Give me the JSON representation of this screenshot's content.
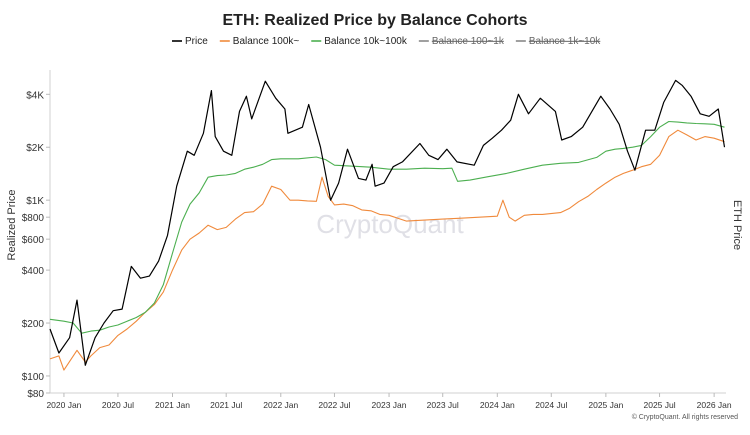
{
  "chart_data": {
    "type": "line",
    "title": "ETH: Realized Price by Balance Cohorts",
    "ylabel": "Realized Price",
    "ylabel_right": "ETH Price",
    "y_scale": "log",
    "ylim": [
      80,
      5500
    ],
    "y_ticks": [
      {
        "value": 80,
        "label": "$80"
      },
      {
        "value": 100,
        "label": "$100"
      },
      {
        "value": 200,
        "label": "$200"
      },
      {
        "value": 400,
        "label": "$400"
      },
      {
        "value": 600,
        "label": "$600"
      },
      {
        "value": 800,
        "label": "$800"
      },
      {
        "value": 1000,
        "label": "$1K"
      },
      {
        "value": 2000,
        "label": "$2K"
      },
      {
        "value": 4000,
        "label": "$4K"
      }
    ],
    "xlim": [
      "2019-11-15",
      "2026-02-10"
    ],
    "x_ticks": [
      {
        "value": "2020-01-01",
        "label": "2020 Jan"
      },
      {
        "value": "2020-07-01",
        "label": "2020 Jul"
      },
      {
        "value": "2021-01-01",
        "label": "2021 Jan"
      },
      {
        "value": "2021-07-01",
        "label": "2021 Jul"
      },
      {
        "value": "2022-01-01",
        "label": "2022 Jan"
      },
      {
        "value": "2022-07-01",
        "label": "2022 Jul"
      },
      {
        "value": "2023-01-01",
        "label": "2023 Jan"
      },
      {
        "value": "2023-07-01",
        "label": "2023 Jul"
      },
      {
        "value": "2024-01-01",
        "label": "2024 Jan"
      },
      {
        "value": "2024-07-01",
        "label": "2024 Jul"
      },
      {
        "value": "2025-01-01",
        "label": "2025 Jan"
      },
      {
        "value": "2025-07-01",
        "label": "2025 Jul"
      },
      {
        "value": "2026-01-01",
        "label": "2026 Jan"
      }
    ],
    "grid": false,
    "legend_position": "top-center",
    "watermark": "CryptoQuant",
    "copyright": "© CryptoQuant. All rights reserved",
    "series": [
      {
        "name": "Price",
        "color": "#000000",
        "visible": true,
        "points": [
          [
            "2019-11-15",
            185
          ],
          [
            "2019-12-15",
            135
          ],
          [
            "2020-01-20",
            165
          ],
          [
            "2020-02-14",
            270
          ],
          [
            "2020-03-13",
            115
          ],
          [
            "2020-04-15",
            165
          ],
          [
            "2020-05-15",
            200
          ],
          [
            "2020-06-15",
            235
          ],
          [
            "2020-07-15",
            240
          ],
          [
            "2020-08-15",
            420
          ],
          [
            "2020-09-15",
            360
          ],
          [
            "2020-10-15",
            370
          ],
          [
            "2020-11-15",
            450
          ],
          [
            "2020-12-15",
            630
          ],
          [
            "2021-01-15",
            1200
          ],
          [
            "2021-02-20",
            1900
          ],
          [
            "2021-03-15",
            1800
          ],
          [
            "2021-04-15",
            2400
          ],
          [
            "2021-05-12",
            4200
          ],
          [
            "2021-05-25",
            2300
          ],
          [
            "2021-06-22",
            1900
          ],
          [
            "2021-07-20",
            1800
          ],
          [
            "2021-08-15",
            3200
          ],
          [
            "2021-09-07",
            3900
          ],
          [
            "2021-09-25",
            2900
          ],
          [
            "2021-11-10",
            4750
          ],
          [
            "2021-12-15",
            3800
          ],
          [
            "2022-01-15",
            3300
          ],
          [
            "2022-01-25",
            2400
          ],
          [
            "2022-03-15",
            2600
          ],
          [
            "2022-04-05",
            3500
          ],
          [
            "2022-05-15",
            2000
          ],
          [
            "2022-06-18",
            1000
          ],
          [
            "2022-07-15",
            1250
          ],
          [
            "2022-08-14",
            1950
          ],
          [
            "2022-09-20",
            1330
          ],
          [
            "2022-10-15",
            1300
          ],
          [
            "2022-11-05",
            1600
          ],
          [
            "2022-11-15",
            1200
          ],
          [
            "2022-12-15",
            1250
          ],
          [
            "2023-01-15",
            1550
          ],
          [
            "2023-02-15",
            1650
          ],
          [
            "2023-04-15",
            2100
          ],
          [
            "2023-05-15",
            1800
          ],
          [
            "2023-06-15",
            1700
          ],
          [
            "2023-07-15",
            1950
          ],
          [
            "2023-08-18",
            1650
          ],
          [
            "2023-10-15",
            1580
          ],
          [
            "2023-11-15",
            2050
          ],
          [
            "2023-12-15",
            2250
          ],
          [
            "2024-01-15",
            2500
          ],
          [
            "2024-02-15",
            2850
          ],
          [
            "2024-03-12",
            4000
          ],
          [
            "2024-04-15",
            3100
          ],
          [
            "2024-05-25",
            3800
          ],
          [
            "2024-07-15",
            3200
          ],
          [
            "2024-08-05",
            2200
          ],
          [
            "2024-09-06",
            2300
          ],
          [
            "2024-10-15",
            2600
          ],
          [
            "2024-12-15",
            3900
          ],
          [
            "2025-01-15",
            3300
          ],
          [
            "2025-02-15",
            2700
          ],
          [
            "2025-03-15",
            1900
          ],
          [
            "2025-04-09",
            1480
          ],
          [
            "2025-05-15",
            2500
          ],
          [
            "2025-06-15",
            2500
          ],
          [
            "2025-07-15",
            3600
          ],
          [
            "2025-08-24",
            4800
          ],
          [
            "2025-09-15",
            4500
          ],
          [
            "2025-10-15",
            3900
          ],
          [
            "2025-11-15",
            3100
          ],
          [
            "2025-12-15",
            3000
          ],
          [
            "2026-01-15",
            3300
          ],
          [
            "2026-02-05",
            2000
          ]
        ]
      },
      {
        "name": "Balance 100k~",
        "color": "#f08a3c",
        "visible": true,
        "points": [
          [
            "2019-11-15",
            125
          ],
          [
            "2019-12-15",
            130
          ],
          [
            "2020-01-01",
            108
          ],
          [
            "2020-02-14",
            140
          ],
          [
            "2020-03-13",
            120
          ],
          [
            "2020-04-01",
            130
          ],
          [
            "2020-05-01",
            145
          ],
          [
            "2020-06-01",
            150
          ],
          [
            "2020-07-01",
            170
          ],
          [
            "2020-08-01",
            185
          ],
          [
            "2020-09-01",
            205
          ],
          [
            "2020-10-01",
            230
          ],
          [
            "2020-11-01",
            255
          ],
          [
            "2020-12-01",
            300
          ],
          [
            "2021-01-01",
            400
          ],
          [
            "2021-02-01",
            520
          ],
          [
            "2021-03-01",
            600
          ],
          [
            "2021-04-01",
            650
          ],
          [
            "2021-05-01",
            720
          ],
          [
            "2021-06-01",
            680
          ],
          [
            "2021-07-01",
            700
          ],
          [
            "2021-08-01",
            780
          ],
          [
            "2021-09-01",
            850
          ],
          [
            "2021-10-01",
            860
          ],
          [
            "2021-11-01",
            950
          ],
          [
            "2021-12-01",
            1200
          ],
          [
            "2022-01-01",
            1150
          ],
          [
            "2022-02-01",
            1000
          ],
          [
            "2022-03-01",
            1000
          ],
          [
            "2022-04-01",
            990
          ],
          [
            "2022-05-01",
            985
          ],
          [
            "2022-05-20",
            1350
          ],
          [
            "2022-06-10",
            1050
          ],
          [
            "2022-07-01",
            940
          ],
          [
            "2022-08-01",
            950
          ],
          [
            "2022-09-01",
            930
          ],
          [
            "2022-10-01",
            880
          ],
          [
            "2022-11-01",
            870
          ],
          [
            "2022-12-01",
            830
          ],
          [
            "2023-01-01",
            820
          ],
          [
            "2023-03-01",
            760
          ],
          [
            "2023-05-01",
            770
          ],
          [
            "2023-07-01",
            780
          ],
          [
            "2023-09-01",
            790
          ],
          [
            "2023-11-01",
            800
          ],
          [
            "2024-01-01",
            810
          ],
          [
            "2024-01-20",
            1000
          ],
          [
            "2024-02-10",
            800
          ],
          [
            "2024-03-01",
            760
          ],
          [
            "2024-04-01",
            820
          ],
          [
            "2024-05-01",
            830
          ],
          [
            "2024-06-01",
            830
          ],
          [
            "2024-08-01",
            850
          ],
          [
            "2024-09-01",
            900
          ],
          [
            "2024-10-01",
            980
          ],
          [
            "2024-11-01",
            1050
          ],
          [
            "2024-12-01",
            1150
          ],
          [
            "2025-01-01",
            1250
          ],
          [
            "2025-02-01",
            1350
          ],
          [
            "2025-03-01",
            1420
          ],
          [
            "2025-04-01",
            1480
          ],
          [
            "2025-05-01",
            1550
          ],
          [
            "2025-06-01",
            1600
          ],
          [
            "2025-07-01",
            1800
          ],
          [
            "2025-08-01",
            2300
          ],
          [
            "2025-09-01",
            2500
          ],
          [
            "2025-10-01",
            2350
          ],
          [
            "2025-11-01",
            2200
          ],
          [
            "2025-12-01",
            2300
          ],
          [
            "2026-01-01",
            2250
          ],
          [
            "2026-02-05",
            2150
          ]
        ]
      },
      {
        "name": "Balance 10k~100k",
        "color": "#4caf50",
        "visible": true,
        "points": [
          [
            "2019-11-15",
            210
          ],
          [
            "2020-01-01",
            205
          ],
          [
            "2020-02-01",
            200
          ],
          [
            "2020-03-01",
            175
          ],
          [
            "2020-04-01",
            180
          ],
          [
            "2020-05-01",
            182
          ],
          [
            "2020-06-01",
            190
          ],
          [
            "2020-07-01",
            195
          ],
          [
            "2020-08-01",
            205
          ],
          [
            "2020-09-01",
            215
          ],
          [
            "2020-10-01",
            230
          ],
          [
            "2020-11-01",
            260
          ],
          [
            "2020-12-01",
            330
          ],
          [
            "2021-01-01",
            500
          ],
          [
            "2021-02-01",
            750
          ],
          [
            "2021-03-01",
            950
          ],
          [
            "2021-04-01",
            1100
          ],
          [
            "2021-05-01",
            1350
          ],
          [
            "2021-06-01",
            1380
          ],
          [
            "2021-07-01",
            1390
          ],
          [
            "2021-08-01",
            1420
          ],
          [
            "2021-09-01",
            1500
          ],
          [
            "2021-10-01",
            1540
          ],
          [
            "2021-11-01",
            1600
          ],
          [
            "2021-12-01",
            1700
          ],
          [
            "2022-01-01",
            1720
          ],
          [
            "2022-03-01",
            1720
          ],
          [
            "2022-05-01",
            1760
          ],
          [
            "2022-06-01",
            1700
          ],
          [
            "2022-07-01",
            1580
          ],
          [
            "2022-09-01",
            1560
          ],
          [
            "2022-11-01",
            1540
          ],
          [
            "2023-01-01",
            1500
          ],
          [
            "2023-03-01",
            1500
          ],
          [
            "2023-05-01",
            1520
          ],
          [
            "2023-07-01",
            1510
          ],
          [
            "2023-08-01",
            1520
          ],
          [
            "2023-08-20",
            1280
          ],
          [
            "2023-10-01",
            1300
          ],
          [
            "2023-12-01",
            1360
          ],
          [
            "2024-02-01",
            1420
          ],
          [
            "2024-04-01",
            1500
          ],
          [
            "2024-06-01",
            1580
          ],
          [
            "2024-08-01",
            1620
          ],
          [
            "2024-10-01",
            1640
          ],
          [
            "2024-12-01",
            1750
          ],
          [
            "2025-01-01",
            1900
          ],
          [
            "2025-02-01",
            1950
          ],
          [
            "2025-03-01",
            1970
          ],
          [
            "2025-04-01",
            2000
          ],
          [
            "2025-05-01",
            2050
          ],
          [
            "2025-06-01",
            2300
          ],
          [
            "2025-07-01",
            2600
          ],
          [
            "2025-08-01",
            2800
          ],
          [
            "2025-09-01",
            2780
          ],
          [
            "2025-10-01",
            2750
          ],
          [
            "2025-11-01",
            2730
          ],
          [
            "2025-12-01",
            2720
          ],
          [
            "2026-01-01",
            2700
          ],
          [
            "2026-02-05",
            2600
          ]
        ]
      },
      {
        "name": "Balance 100~1k",
        "color": "#7b5fb8",
        "visible": false,
        "points": []
      },
      {
        "name": "Balance 1k~10k",
        "color": "#6a7fa0",
        "visible": false,
        "points": []
      }
    ]
  }
}
